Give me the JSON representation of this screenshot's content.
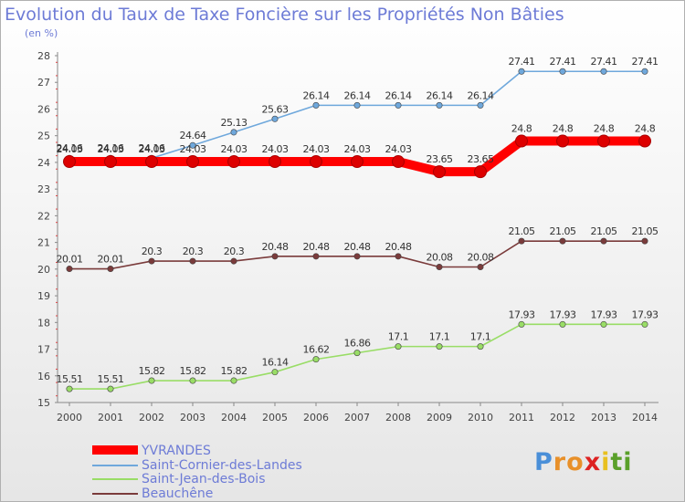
{
  "chart_data": {
    "type": "line",
    "title": "Evolution du Taux de Taxe Foncière sur les Propriétés Non Bâties",
    "subtitle": "(en %)",
    "x": [
      "2000",
      "2001",
      "2002",
      "2003",
      "2004",
      "2005",
      "2006",
      "2007",
      "2008",
      "2009",
      "2010",
      "2011",
      "2012",
      "2013",
      "2014"
    ],
    "ylim": [
      15,
      28
    ],
    "yticks": [
      "15",
      "16",
      "17",
      "18",
      "19",
      "20",
      "21",
      "22",
      "23",
      "24",
      "25",
      "26",
      "27",
      "28"
    ],
    "grid": false,
    "legend_position": "bottom-left",
    "series": [
      {
        "name": "YVRANDES",
        "color": "#ff0000",
        "emphasis": true,
        "values": [
          24.03,
          24.03,
          24.03,
          24.03,
          24.03,
          24.03,
          24.03,
          24.03,
          24.03,
          23.65,
          23.65,
          24.8,
          24.8,
          24.8,
          24.8
        ],
        "labels": [
          "24.03",
          "24.03",
          "24.03",
          "24.03",
          "24.03",
          "24.03",
          "24.03",
          "24.03",
          "24.03",
          "23.65",
          "23.65",
          "24.8",
          "24.8",
          "24.8",
          "24.8"
        ]
      },
      {
        "name": "Saint-Cornier-des-Landes",
        "color": "#6fa8dc",
        "values": [
          24.16,
          24.16,
          24.16,
          24.64,
          25.13,
          25.63,
          26.14,
          26.14,
          26.14,
          26.14,
          26.14,
          27.41,
          27.41,
          27.41,
          27.41
        ],
        "labels": [
          "24.16",
          "24.16",
          "24.16",
          "24.64",
          "25.13",
          "25.63",
          "26.14",
          "26.14",
          "26.14",
          "26.14",
          "26.14",
          "27.41",
          "27.41",
          "27.41",
          "27.41"
        ]
      },
      {
        "name": "Saint-Jean-des-Bois",
        "color": "#99dd66",
        "values": [
          15.51,
          15.51,
          15.82,
          15.82,
          15.82,
          16.14,
          16.62,
          16.86,
          17.1,
          17.1,
          17.1,
          17.93,
          17.93,
          17.93,
          17.93
        ],
        "labels": [
          "15.51",
          "15.51",
          "15.82",
          "15.82",
          "15.82",
          "16.14",
          "16.62",
          "16.86",
          "17.1",
          "17.1",
          "17.1",
          "17.93",
          "17.93",
          "17.93",
          "17.93"
        ]
      },
      {
        "name": "Beauchêne",
        "color": "#7a3b3b",
        "values": [
          20.01,
          20.01,
          20.3,
          20.3,
          20.3,
          20.48,
          20.48,
          20.48,
          20.48,
          20.08,
          20.08,
          21.05,
          21.05,
          21.05,
          21.05
        ],
        "labels": [
          "20.01",
          "20.01",
          "20.3",
          "20.3",
          "20.3",
          "20.48",
          "20.48",
          "20.48",
          "20.48",
          "20.08",
          "20.08",
          "21.05",
          "21.05",
          "21.05",
          "21.05"
        ]
      }
    ]
  },
  "logo": {
    "letters": [
      "P",
      "r",
      "o",
      "x",
      "i",
      "t",
      "i"
    ],
    "colors": [
      "#4a8fd8",
      "#e8902a",
      "#e8902a",
      "#d22",
      "#e8c020",
      "#5aa02a",
      "#5aa02a"
    ]
  }
}
